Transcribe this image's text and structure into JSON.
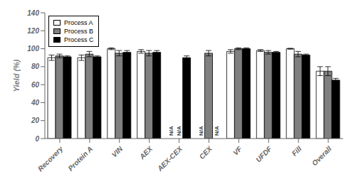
{
  "chart_data": {
    "type": "bar",
    "ylabel": "Yield (%)",
    "categories": [
      "Recovery",
      "Protein A",
      "VIN",
      "AEX",
      "AEX-CEX",
      "CEX",
      "VF",
      "UFDF",
      "Fill",
      "Overall"
    ],
    "series": [
      {
        "name": "Process A",
        "color": "white",
        "values": [
          90,
          90,
          100,
          97,
          null,
          null,
          97,
          98,
          100,
          75
        ],
        "errors": [
          3,
          3,
          1,
          2,
          null,
          null,
          2,
          1,
          0.5,
          5
        ]
      },
      {
        "name": "Process B",
        "color": "#808080",
        "values": [
          92,
          94,
          95,
          95,
          null,
          95,
          100,
          96,
          94,
          75
        ],
        "errors": [
          2,
          3,
          3,
          3,
          null,
          3,
          1,
          2,
          3,
          5
        ]
      },
      {
        "name": "Process C",
        "color": "black",
        "values": [
          91,
          91,
          96,
          96,
          90,
          null,
          100,
          96,
          93,
          65
        ],
        "errors": [
          1,
          1,
          2,
          2,
          2,
          null,
          1,
          1,
          1,
          2
        ]
      }
    ],
    "ylim": [
      0,
      140
    ],
    "yticks": [
      0,
      20,
      40,
      60,
      80,
      100,
      120,
      140
    ],
    "grid": false,
    "legend": "upper left",
    "annotations": [
      {
        "text": "N/A",
        "series": "Process A",
        "category": "AEX-CEX"
      },
      {
        "text": "N/A",
        "series": "Process A",
        "category": "CEX"
      },
      {
        "text": "N/A",
        "series": "Process B",
        "category": "AEX-CEX"
      },
      {
        "text": "N/A",
        "series": "Process C",
        "category": "CEX"
      }
    ]
  }
}
